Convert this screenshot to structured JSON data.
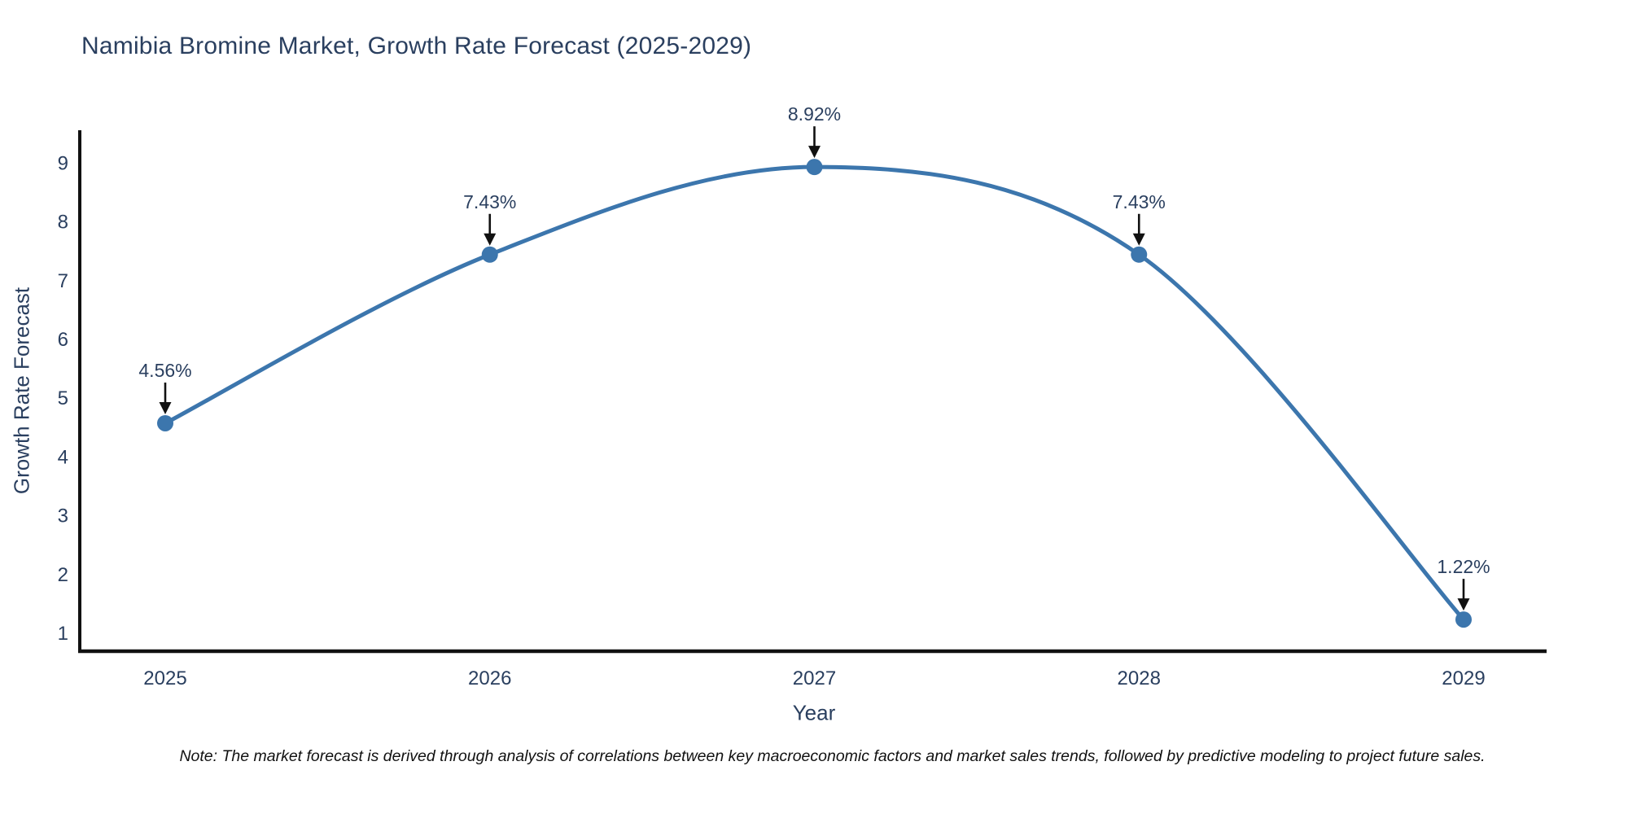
{
  "chart_data": {
    "type": "line",
    "title": "Namibia Bromine Market, Growth Rate Forecast (2025-2029)",
    "xlabel": "Year",
    "ylabel": "Growth Rate Forecast",
    "categories": [
      2025,
      2026,
      2027,
      2028,
      2029
    ],
    "values": [
      4.56,
      7.43,
      8.92,
      7.43,
      1.22
    ],
    "point_labels": [
      "4.56%",
      "7.43%",
      "8.92%",
      "7.43%",
      "1.22%"
    ],
    "y_ticks": [
      1,
      2,
      3,
      4,
      5,
      6,
      7,
      8,
      9
    ],
    "ylim": [
      0.68,
      9.85
    ],
    "line_shape": "spline",
    "grid": false,
    "legend_position": "none",
    "markers": true,
    "annotation_arrows": true,
    "colors": {
      "line": "#3c76ad",
      "marker": "#3c76ad",
      "text": "#2a3f5f",
      "axis": "#111111",
      "arrow": "#111111",
      "note_text": "#111111",
      "background": "#ffffff"
    },
    "note": "Note: The market forecast is derived through analysis of correlations between key macroeconomic factors and market sales trends, followed by predictive modeling to project future sales."
  }
}
